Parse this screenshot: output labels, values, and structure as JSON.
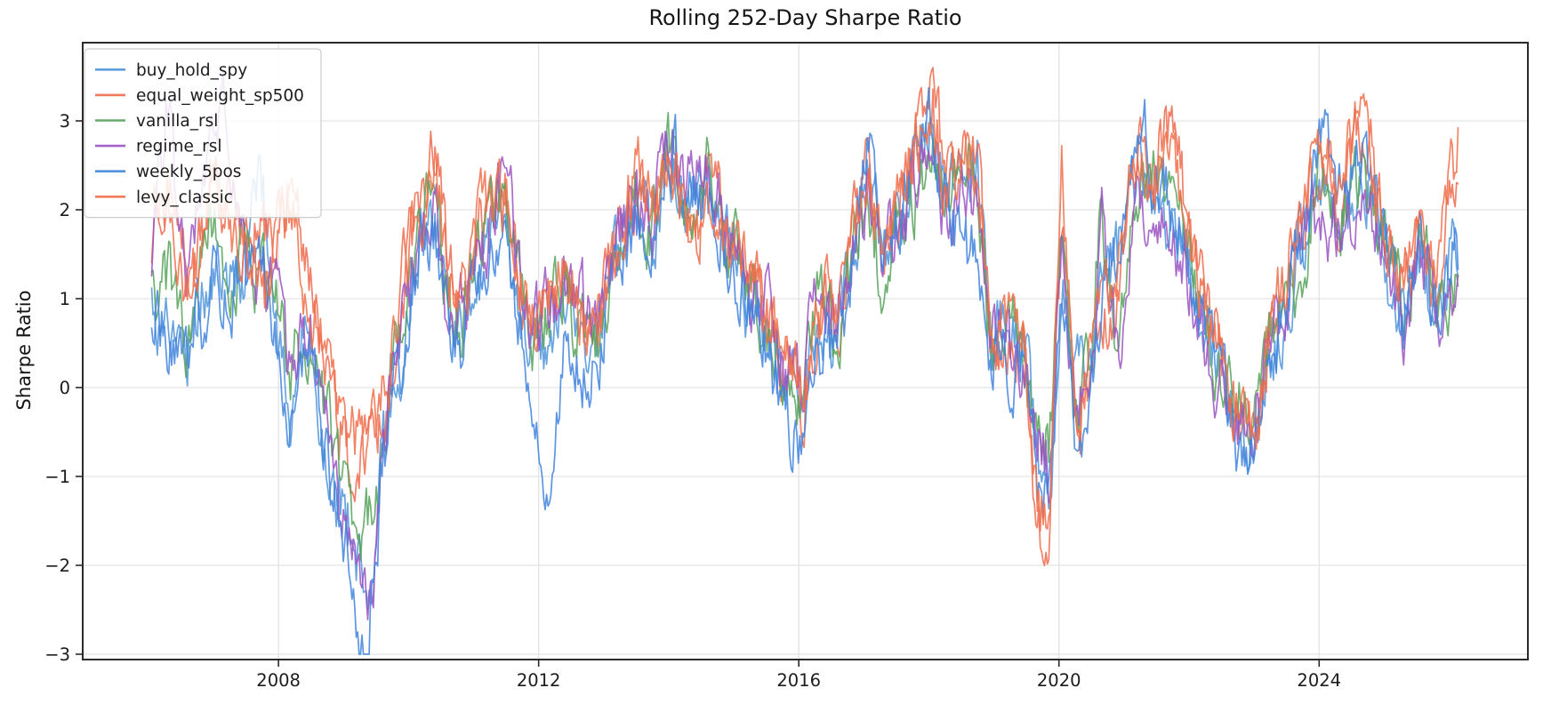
{
  "figure": {
    "background": "#ffffff"
  },
  "style": {
    "grid_color": "#e3e3e3",
    "spine_color": "#2b2b2b",
    "tick_color": "#2b2b2b",
    "text_color": "#1c1c1c",
    "legend_border": "#cccccc",
    "legend_bg": "#ffffff"
  },
  "chart_data": {
    "type": "line",
    "title": "Rolling 252-Day Sharpe Ratio",
    "xlabel": "",
    "ylabel": "Sharpe Ratio",
    "xlim": [
      2004.99,
      2027.21
    ],
    "ylim": [
      -3.06,
      3.88
    ],
    "xticks": [
      2008,
      2012,
      2016,
      2020,
      2024
    ],
    "yticks": [
      -3,
      -2,
      -1,
      0,
      1,
      2,
      3
    ],
    "grid": true,
    "legend_position": "upper-left",
    "x": [
      2006.05,
      2006.15,
      2006.3,
      2006.45,
      2006.6,
      2006.8,
      2007.0,
      2007.15,
      2007.3,
      2007.5,
      2007.7,
      2007.85,
      2008.0,
      2008.2,
      2008.35,
      2008.5,
      2008.7,
      2008.9,
      2009.1,
      2009.3,
      2009.45,
      2009.6,
      2009.8,
      2010.0,
      2010.2,
      2010.4,
      2010.6,
      2010.8,
      2011.0,
      2011.2,
      2011.5,
      2011.75,
      2012.0,
      2012.15,
      2012.4,
      2012.65,
      2012.9,
      2013.2,
      2013.5,
      2013.75,
      2014.0,
      2014.3,
      2014.6,
      2014.9,
      2015.2,
      2015.5,
      2015.8,
      2016.05,
      2016.3,
      2016.6,
      2016.85,
      2017.05,
      2017.3,
      2017.6,
      2017.85,
      2018.05,
      2018.25,
      2018.5,
      2018.75,
      2018.95,
      2019.2,
      2019.45,
      2019.7,
      2019.85,
      2020.05,
      2020.25,
      2020.5,
      2020.65,
      2020.9,
      2021.2,
      2021.45,
      2021.65,
      2021.9,
      2022.2,
      2022.5,
      2022.8,
      2023.0,
      2023.2,
      2023.5,
      2023.8,
      2024.05,
      2024.3,
      2024.55,
      2024.8,
      2025.05,
      2025.3,
      2025.55,
      2025.8,
      2026.0,
      2026.15
    ],
    "series": [
      {
        "name": "buy_hold_spy",
        "color": "#4E94D9",
        "values": [
          0.9,
          0.7,
          0.9,
          0.6,
          0.4,
          1.0,
          1.4,
          1.2,
          1.0,
          1.4,
          2.6,
          1.6,
          0.5,
          -0.3,
          0.4,
          0.3,
          -0.4,
          -1.2,
          -1.6,
          -2.1,
          -1.9,
          -0.8,
          0.2,
          0.9,
          1.7,
          2.0,
          1.0,
          0.6,
          1.2,
          1.6,
          1.9,
          0.8,
          0.3,
          0.5,
          0.9,
          0.5,
          0.4,
          1.4,
          2.0,
          1.7,
          2.6,
          2.0,
          2.3,
          1.6,
          1.0,
          0.6,
          0.0,
          -0.4,
          0.7,
          0.5,
          1.6,
          2.2,
          1.4,
          2.0,
          2.6,
          2.9,
          2.0,
          2.3,
          2.6,
          0.6,
          0.8,
          0.5,
          -0.9,
          -1.1,
          1.2,
          0.0,
          0.4,
          0.9,
          1.4,
          2.5,
          2.2,
          2.0,
          1.6,
          0.8,
          0.1,
          -0.4,
          -0.6,
          0.3,
          0.9,
          1.7,
          2.4,
          1.8,
          2.4,
          2.2,
          1.3,
          0.7,
          1.5,
          0.8,
          1.2,
          1.5
        ]
      },
      {
        "name": "equal_weight_sp500",
        "color": "#ED6A4C",
        "values": [
          1.6,
          2.3,
          2.5,
          1.9,
          1.3,
          1.8,
          2.3,
          1.9,
          2.2,
          1.9,
          1.7,
          1.6,
          2.0,
          2.1,
          1.5,
          1.2,
          0.5,
          -0.4,
          -0.7,
          -0.95,
          -0.8,
          -0.3,
          0.6,
          1.3,
          2.3,
          2.8,
          1.3,
          0.9,
          1.5,
          1.9,
          2.2,
          1.0,
          0.8,
          0.9,
          1.3,
          0.8,
          0.6,
          1.7,
          2.3,
          1.9,
          2.5,
          1.9,
          2.2,
          1.9,
          1.2,
          0.8,
          0.3,
          -0.3,
          0.9,
          0.7,
          1.9,
          2.3,
          1.5,
          2.2,
          3.0,
          3.5,
          2.1,
          2.5,
          2.5,
          0.3,
          0.6,
          0.3,
          -1.5,
          -1.8,
          2.0,
          -0.6,
          0.2,
          0.8,
          1.0,
          2.8,
          2.4,
          3.0,
          2.2,
          1.1,
          0.3,
          -0.5,
          -0.7,
          0.5,
          1.2,
          2.0,
          2.6,
          2.0,
          2.9,
          2.5,
          1.8,
          1.0,
          1.8,
          1.1,
          2.0,
          2.85
        ]
      },
      {
        "name": "vanilla_rsl",
        "color": "#57A25A",
        "values": [
          1.2,
          1.0,
          1.2,
          0.9,
          0.5,
          1.2,
          1.7,
          1.4,
          1.2,
          1.6,
          1.3,
          1.1,
          0.7,
          0.2,
          0.6,
          0.5,
          -0.2,
          -0.9,
          -1.3,
          -1.75,
          -1.5,
          -0.5,
          0.4,
          1.1,
          1.9,
          2.2,
          1.1,
          0.8,
          1.4,
          1.8,
          2.3,
          0.9,
          0.5,
          0.7,
          1.1,
          0.7,
          0.5,
          1.5,
          2.1,
          1.8,
          2.65,
          2.1,
          2.4,
          1.7,
          1.1,
          0.7,
          0.2,
          -0.1,
          0.8,
          0.6,
          1.7,
          2.0,
          1.3,
          1.9,
          2.4,
          2.7,
          1.9,
          2.4,
          2.5,
          0.5,
          0.7,
          0.4,
          -0.6,
          -0.8,
          2.1,
          -0.3,
          0.5,
          2.2,
          0.4,
          2.2,
          2.6,
          2.1,
          1.8,
          0.9,
          0.2,
          -0.2,
          -0.3,
          0.4,
          1.0,
          1.6,
          2.5,
          1.9,
          2.3,
          2.0,
          1.5,
          0.8,
          1.6,
          0.9,
          1.1,
          1.3
        ]
      },
      {
        "name": "regime_rsl",
        "color": "#9A52C2",
        "values": [
          1.5,
          2.1,
          3.2,
          2.0,
          1.3,
          1.9,
          2.9,
          3.4,
          2.1,
          1.7,
          1.3,
          1.1,
          0.8,
          0.4,
          0.7,
          0.6,
          -0.3,
          -1.1,
          -1.6,
          -2.45,
          -2.1,
          -0.7,
          0.3,
          1.0,
          1.8,
          2.0,
          0.9,
          0.7,
          1.3,
          1.7,
          2.6,
          1.0,
          0.6,
          0.8,
          1.2,
          0.8,
          0.6,
          1.6,
          2.2,
          1.9,
          3.0,
          2.2,
          2.5,
          1.8,
          1.2,
          0.8,
          0.3,
          0.0,
          0.9,
          0.7,
          1.8,
          2.1,
          1.4,
          2.0,
          2.5,
          2.8,
          2.0,
          2.0,
          2.1,
          0.4,
          0.6,
          0.3,
          -0.7,
          -0.9,
          1.8,
          -0.4,
          0.3,
          2.1,
          0.2,
          2.0,
          1.8,
          1.7,
          1.5,
          0.7,
          0.0,
          -0.5,
          -0.4,
          0.6,
          1.1,
          1.5,
          2.2,
          1.7,
          2.1,
          1.9,
          1.4,
          0.7,
          1.4,
          0.8,
          1.0,
          1.2
        ]
      },
      {
        "name": "weekly_5pos",
        "color": "#3F83DC",
        "values": [
          0.6,
          0.8,
          0.6,
          0.4,
          0.1,
          0.8,
          1.2,
          1.0,
          0.9,
          1.3,
          1.9,
          1.0,
          0.3,
          -0.2,
          0.3,
          0.2,
          -0.6,
          -1.4,
          -1.9,
          -2.8,
          -2.3,
          -1.0,
          0.1,
          0.8,
          1.5,
          1.8,
          0.8,
          0.5,
          1.1,
          1.5,
          1.9,
          0.6,
          -0.7,
          -1.15,
          0.6,
          0.3,
          0.2,
          1.3,
          1.9,
          1.6,
          2.8,
          2.1,
          2.2,
          1.5,
          0.9,
          0.5,
          -0.3,
          -1.0,
          0.5,
          0.4,
          1.5,
          2.9,
          1.6,
          2.1,
          2.8,
          3.1,
          2.1,
          1.6,
          1.5,
          0.3,
          0.5,
          0.2,
          -1.1,
          -1.3,
          0.8,
          -0.7,
          0.1,
          1.0,
          1.5,
          3.0,
          2.5,
          2.2,
          1.7,
          0.9,
          0.0,
          -0.8,
          -0.75,
          0.2,
          0.8,
          1.8,
          3.0,
          2.1,
          2.7,
          2.4,
          1.6,
          0.6,
          1.9,
          0.7,
          1.4,
          1.6
        ]
      },
      {
        "name": "levy_classic",
        "color": "#F06F4A",
        "values": [
          2.2,
          1.9,
          2.2,
          1.6,
          1.1,
          1.6,
          2.4,
          2.0,
          1.7,
          1.5,
          1.3,
          1.2,
          1.7,
          1.9,
          1.4,
          1.1,
          0.6,
          -0.1,
          -0.45,
          -0.7,
          -0.55,
          -0.1,
          0.7,
          1.4,
          2.1,
          2.5,
          1.2,
          1.0,
          1.6,
          2.0,
          2.1,
          1.1,
          0.9,
          1.0,
          1.4,
          0.9,
          0.7,
          1.8,
          2.4,
          2.0,
          2.4,
          1.8,
          2.1,
          1.8,
          1.3,
          0.9,
          0.4,
          -0.2,
          1.0,
          0.8,
          2.0,
          2.4,
          1.6,
          2.3,
          2.9,
          3.3,
          2.2,
          2.6,
          2.4,
          0.5,
          0.9,
          0.5,
          -1.3,
          -1.6,
          2.4,
          -0.5,
          0.3,
          0.9,
          1.1,
          2.6,
          2.3,
          2.9,
          2.0,
          1.0,
          0.4,
          -0.4,
          -0.6,
          0.6,
          1.3,
          2.1,
          2.7,
          2.1,
          3.0,
          2.6,
          1.9,
          1.1,
          1.7,
          1.2,
          2.2,
          2.9
        ]
      }
    ]
  }
}
